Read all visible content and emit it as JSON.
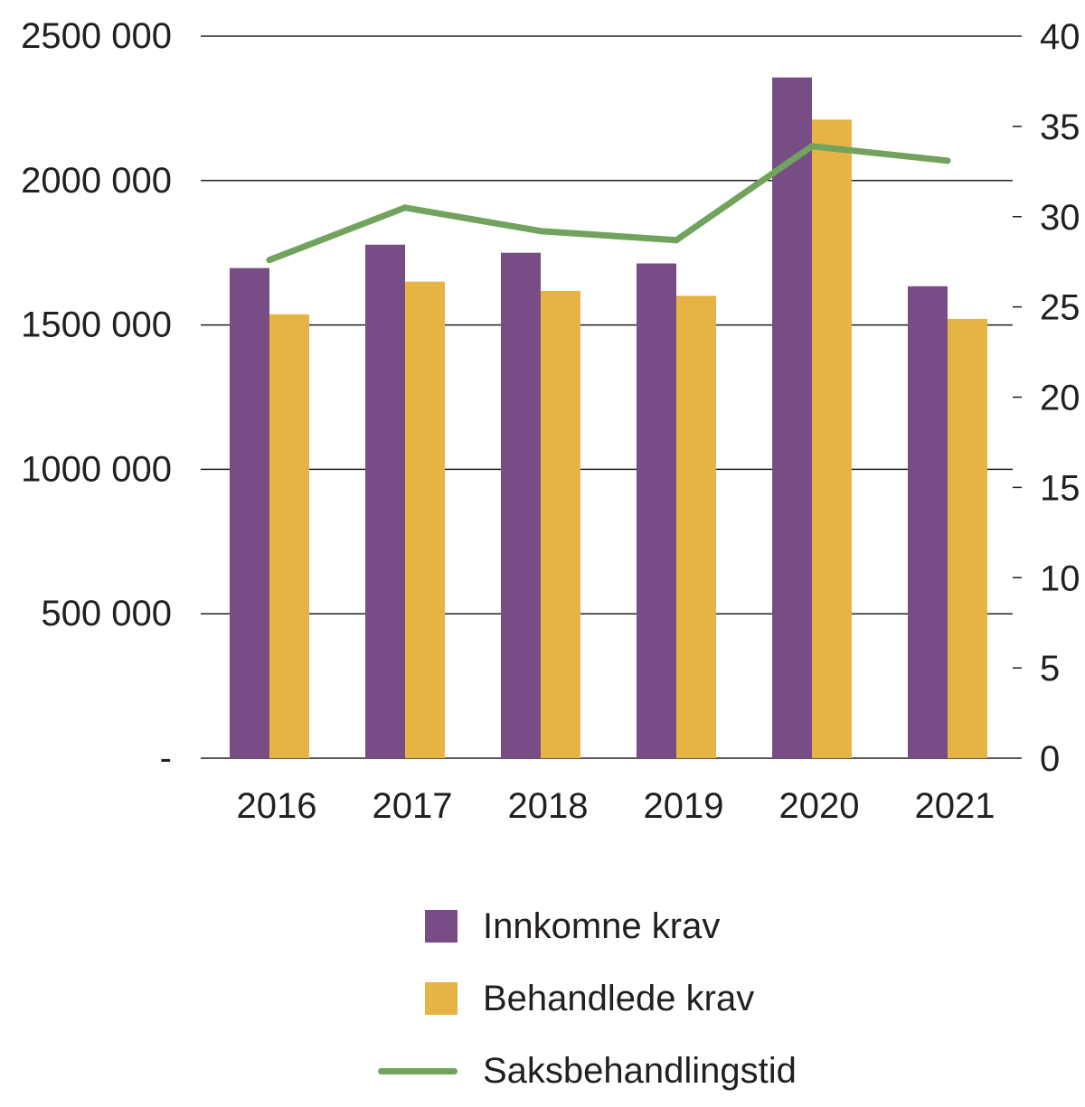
{
  "chart_data": {
    "type": "bar",
    "title": "",
    "xlabel": "",
    "ylabel": "",
    "categories": [
      "2016",
      "2017",
      "2018",
      "2019",
      "2020",
      "2021"
    ],
    "series": [
      {
        "name": "Innkomne krav",
        "type": "bar",
        "axis": "left",
        "color": "#784d85",
        "values": [
          1697000,
          1778000,
          1750000,
          1713000,
          2357000,
          1634000
        ]
      },
      {
        "name": "Behandlede krav",
        "type": "bar",
        "axis": "left",
        "color": "#e6b445",
        "values": [
          1537000,
          1650000,
          1618000,
          1601000,
          2211000,
          1521000
        ]
      },
      {
        "name": "Saksbehandlingstid",
        "type": "line",
        "axis": "right",
        "color": "#72a35d",
        "values": [
          27.6,
          30.5,
          29.2,
          28.7,
          33.9,
          33.1
        ]
      }
    ],
    "y_left": {
      "ylim": [
        0,
        2500000
      ],
      "ticks": [
        0,
        500000,
        1000000,
        1500000,
        2000000,
        2500000
      ],
      "tick_labels": [
        "-",
        "500 000",
        "1000 000",
        "1500 000",
        "2000 000",
        "2500 000"
      ]
    },
    "y_right": {
      "ylim": [
        0,
        40
      ],
      "ticks": [
        0,
        5,
        10,
        15,
        20,
        25,
        30,
        35,
        40
      ],
      "tick_labels": [
        "0",
        "5",
        "10",
        "15",
        "20",
        "25",
        "30",
        "35",
        "40"
      ]
    },
    "grid": true,
    "legend_position": "bottom"
  }
}
